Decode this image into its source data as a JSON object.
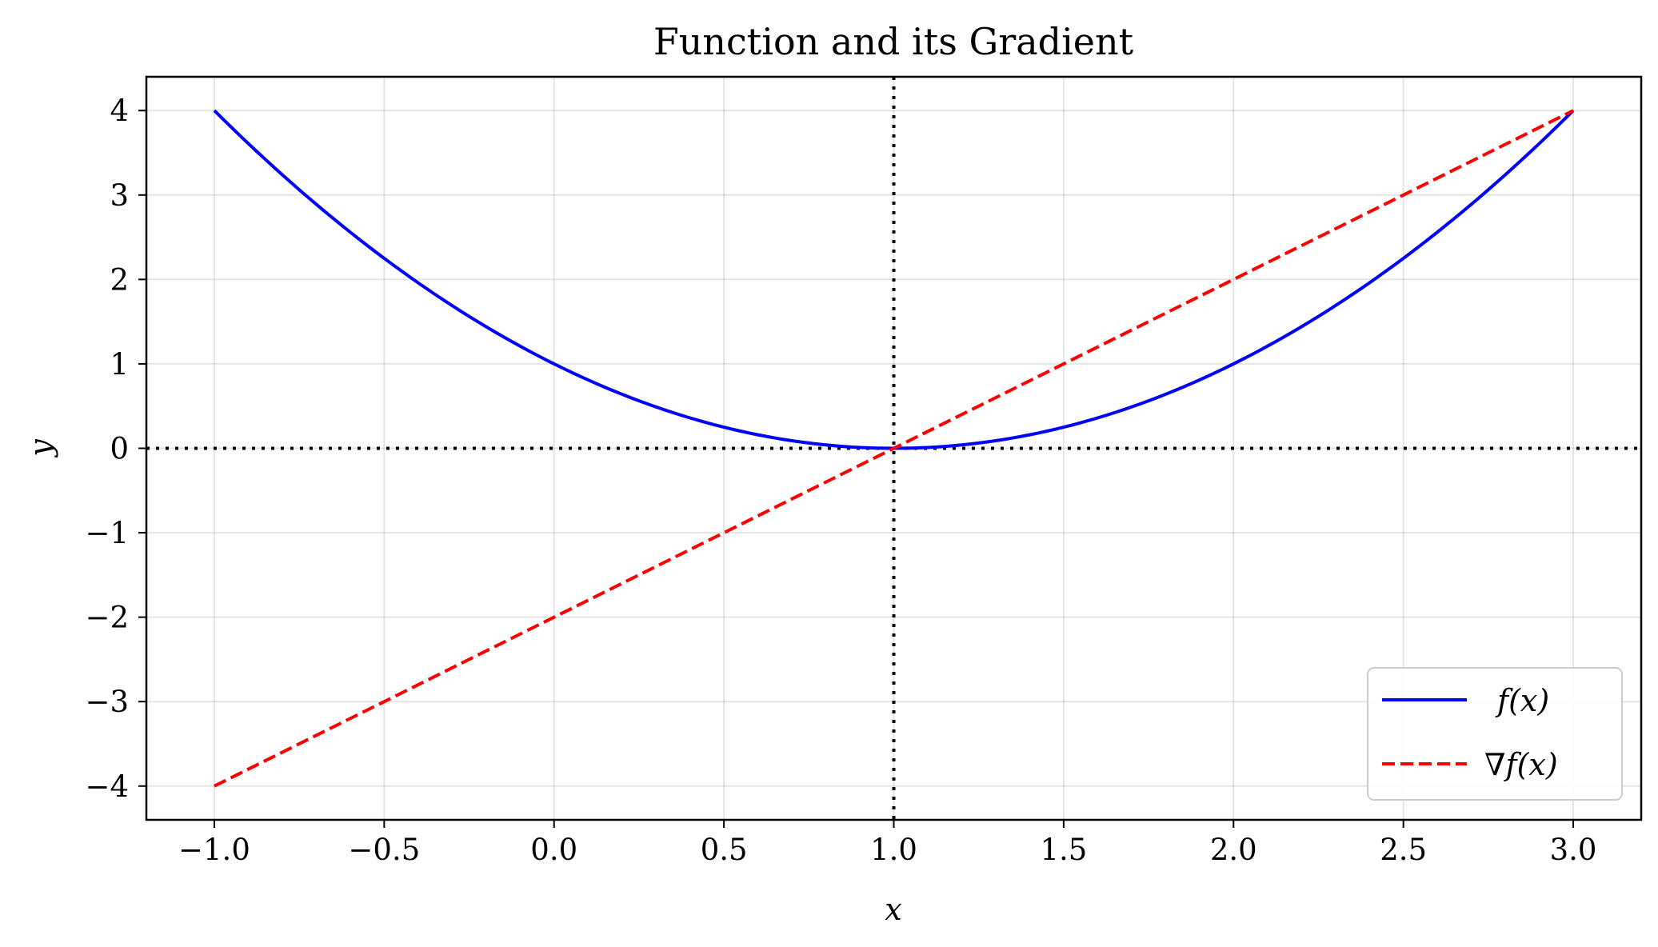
{
  "chart_data": {
    "type": "line",
    "title": "Function and its Gradient",
    "xlabel": "x",
    "ylabel": "y",
    "xlim": [
      -1.2,
      3.2
    ],
    "ylim": [
      -4.4,
      4.4
    ],
    "xticks": [
      -1.0,
      -0.5,
      0.0,
      0.5,
      1.0,
      1.5,
      2.0,
      2.5,
      3.0
    ],
    "xtick_labels": [
      "−1.0",
      "−0.5",
      "0.0",
      "0.5",
      "1.0",
      "1.5",
      "2.0",
      "2.5",
      "3.0"
    ],
    "yticks": [
      -4,
      -3,
      -2,
      -1,
      0,
      1,
      2,
      3,
      4
    ],
    "ytick_labels": [
      "−4",
      "−3",
      "−2",
      "−1",
      "0",
      "1",
      "2",
      "3",
      "4"
    ],
    "grid": true,
    "legend_position": "lower-right",
    "reference_lines": [
      {
        "orientation": "horizontal",
        "value": 0,
        "style": "dotted",
        "color": "#000000"
      },
      {
        "orientation": "vertical",
        "value": 1,
        "style": "dotted",
        "color": "#000000"
      }
    ],
    "series": [
      {
        "name": "f(x)",
        "color": "#0000ff",
        "style": "solid",
        "x": [
          -1.0,
          -0.5,
          0.0,
          0.5,
          1.0,
          1.5,
          2.0,
          2.5,
          3.0
        ],
        "y": [
          4.0,
          2.25,
          1.0,
          0.25,
          0.0,
          0.25,
          1.0,
          2.25,
          4.0
        ]
      },
      {
        "name": "∇f(x)",
        "color": "#ff0000",
        "style": "dashed",
        "x": [
          -1.0,
          3.0
        ],
        "y": [
          -4.0,
          4.0
        ]
      }
    ]
  }
}
